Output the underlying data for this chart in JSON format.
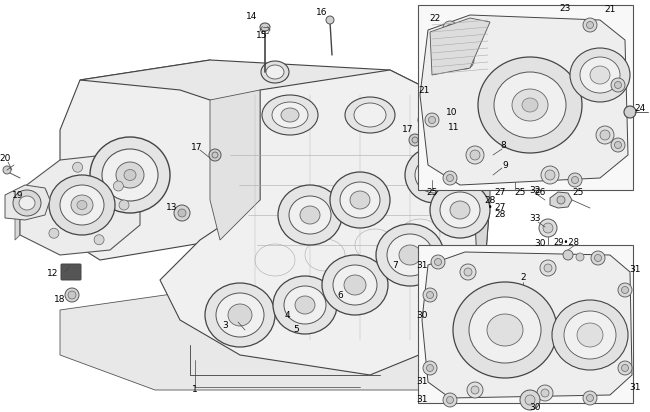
{
  "background_color": "#ffffff",
  "line_color": "#555555",
  "thin_line": "#777777",
  "dark_line": "#333333",
  "label_fontsize": 6.5,
  "figsize": [
    6.5,
    4.12
  ],
  "dpi": 100,
  "face_fill": "#f2f2f2",
  "shadow_fill": "#e0e0e0",
  "white_fill": "#ffffff",
  "inset_bg": "#fafafa"
}
